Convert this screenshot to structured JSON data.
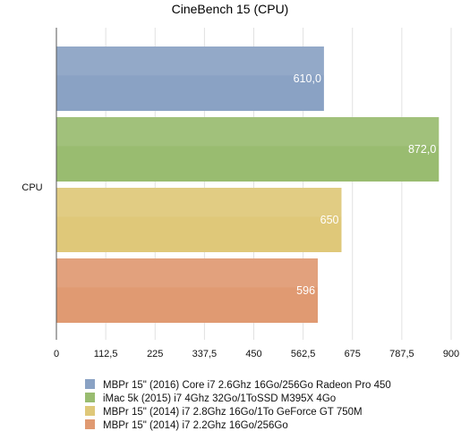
{
  "chart_data": {
    "type": "bar",
    "orientation": "horizontal",
    "title": "CineBench 15 (CPU)",
    "categories": [
      "CPU"
    ],
    "xlim": [
      0,
      900
    ],
    "xticks": [
      "0",
      "112,5",
      "225",
      "337,5",
      "450",
      "562,5",
      "675",
      "787,5",
      "900"
    ],
    "grid": true,
    "legend_position": "bottom",
    "series": [
      {
        "name": "MBPr 15\" (2016) Core i7 2.6Ghz 16Go/256Go Radeon Pro 450",
        "value": 610,
        "label": "610,0",
        "color": "#8aa2c4"
      },
      {
        "name": "iMac 5k (2015) i7 4Ghz 32Go/1ToSSD M395X 4Go",
        "value": 872,
        "label": "872,0",
        "color": "#99bc70"
      },
      {
        "name": "MBPr 15\" (2014) i7 2.8Ghz 16Go/1To GeForce GT 750M",
        "value": 650,
        "label": "650",
        "color": "#dfc879"
      },
      {
        "name": "MBPr 15\" (2014) i7 2.2Ghz 16Go/256Go",
        "value": 596,
        "label": "596",
        "color": "#e09a72"
      }
    ]
  }
}
